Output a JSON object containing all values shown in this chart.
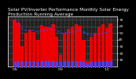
{
  "title": "Solar PV/Inverter Performance Monthly Solar Energy Production Running Average",
  "bar_color": "#ee0000",
  "avg_color": "#4444ff",
  "dot_color": "#4444ff",
  "background_color": "#000000",
  "plot_bg_color": "#222222",
  "grid_color": "#ffffff",
  "text_color": "#ffffff",
  "values": [
    70,
    65,
    30,
    50,
    55,
    52,
    40,
    62,
    60,
    58,
    63,
    44,
    18,
    50,
    56,
    60,
    63,
    61,
    40,
    8,
    44,
    50,
    60,
    63,
    57,
    64
  ],
  "running_avg": [
    70,
    67,
    55,
    54,
    54,
    54,
    52,
    54,
    54,
    55,
    56,
    54,
    50,
    50,
    51,
    52,
    53,
    54,
    52,
    48,
    47,
    47,
    49,
    50,
    51,
    53
  ],
  "dot_values": [
    3,
    4,
    4,
    4,
    4,
    4,
    3,
    4,
    4,
    4,
    4,
    3,
    3,
    4,
    4,
    4,
    4,
    4,
    3,
    2,
    3,
    3,
    4,
    4,
    4,
    4
  ],
  "ylim": [
    0,
    75
  ],
  "n_bars": 26,
  "title_fontsize": 4.2,
  "tick_fontsize": 3.2,
  "yticks": [
    10,
    20,
    30,
    40,
    50,
    60,
    70
  ],
  "xlabel_labels": [
    "'08",
    "",
    "",
    "",
    "",
    "",
    "",
    "",
    "",
    "",
    "",
    "",
    "'09",
    "",
    "",
    "",
    "",
    "",
    "",
    "",
    "",
    "",
    "",
    "",
    "'10",
    ""
  ]
}
